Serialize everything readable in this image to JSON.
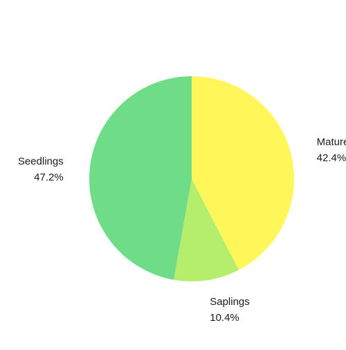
{
  "chart_data": {
    "type": "pie",
    "start_angle_deg": 0,
    "direction": "clockwise",
    "slices": [
      {
        "label": "Mature",
        "value": 42.4,
        "percent_label": "42.4%",
        "color": "#fff75a"
      },
      {
        "label": "Saplings",
        "value": 10.4,
        "percent_label": "10.4%",
        "color": "#b5ee6c"
      },
      {
        "label": "Seedlings",
        "value": 47.2,
        "percent_label": "47.2%",
        "color": "#6fdc88"
      }
    ]
  }
}
